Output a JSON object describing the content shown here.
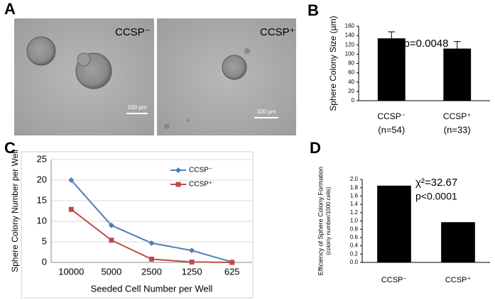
{
  "panel_labels": [
    "A",
    "B",
    "C",
    "D"
  ],
  "images": [
    {
      "label": "CCSP⁻",
      "scale_bar": "100 µm"
    },
    {
      "label": "CCSP⁺",
      "scale_bar": "100 µm"
    }
  ],
  "chart_data": [
    {
      "type": "bar",
      "ylabel": "Sphere Colony Size (µm)",
      "annotations": [
        "p=0.0048"
      ],
      "categories": [
        "CCSP⁻",
        "CCSP⁺"
      ],
      "sublabels": [
        "(n=54)",
        "(n=33)"
      ],
      "values": [
        134,
        112
      ],
      "errors": [
        14,
        15
      ],
      "color": "#000000",
      "ylim": [
        0,
        160
      ],
      "yticks": [
        0,
        20,
        40,
        60,
        80,
        100,
        120,
        140,
        160
      ],
      "grid": false
    },
    {
      "type": "line",
      "xlabel": "Seeded Cell Number per Well",
      "ylabel": "Sphere Colony Number per Well",
      "categories": [
        "10000",
        "5000",
        "2500",
        "1250",
        "625"
      ],
      "series": [
        {
          "name": "CCSP⁻",
          "color": "#4a7ebb",
          "marker": "diamond",
          "values": [
            20,
            9,
            4.7,
            2.9,
            0.1
          ]
        },
        {
          "name": "CCSP⁺",
          "color": "#be4b48",
          "marker": "square",
          "values": [
            12.9,
            5.4,
            0.8,
            0.1,
            0
          ]
        }
      ],
      "ylim": [
        0,
        25
      ],
      "yticks": [
        0,
        5,
        10,
        15,
        20,
        25
      ],
      "grid": true,
      "legend": "upper right"
    },
    {
      "type": "bar",
      "ylabel": "Efficiency of Sphere Colony Formation",
      "ylabel_note": "(colony number/1000 cells)",
      "annotations": [
        "χ²=32.67",
        "p<0.0001"
      ],
      "categories": [
        "CCSP⁻",
        "CCSP⁺"
      ],
      "values": [
        1.85,
        0.97
      ],
      "color": "#000000",
      "ylim": [
        0,
        2.0
      ],
      "yticks": [
        {
          "value": 0,
          "label": "0.0"
        },
        {
          "value": 0.2,
          "label": "0.2"
        },
        {
          "value": 0.4,
          "label": "0.4"
        },
        {
          "value": 0.6,
          "label": "0.6"
        },
        {
          "value": 0.8,
          "label": "0.8"
        },
        {
          "value": 1.0,
          "label": "1.0"
        },
        {
          "value": 1.2,
          "label": "1.2"
        },
        {
          "value": 1.4,
          "label": "1.4"
        },
        {
          "value": 1.6,
          "label": "1.6"
        },
        {
          "value": 1.8,
          "label": "1.8"
        },
        {
          "value": 2.0,
          "label": "2.0"
        }
      ],
      "grid": false
    }
  ]
}
